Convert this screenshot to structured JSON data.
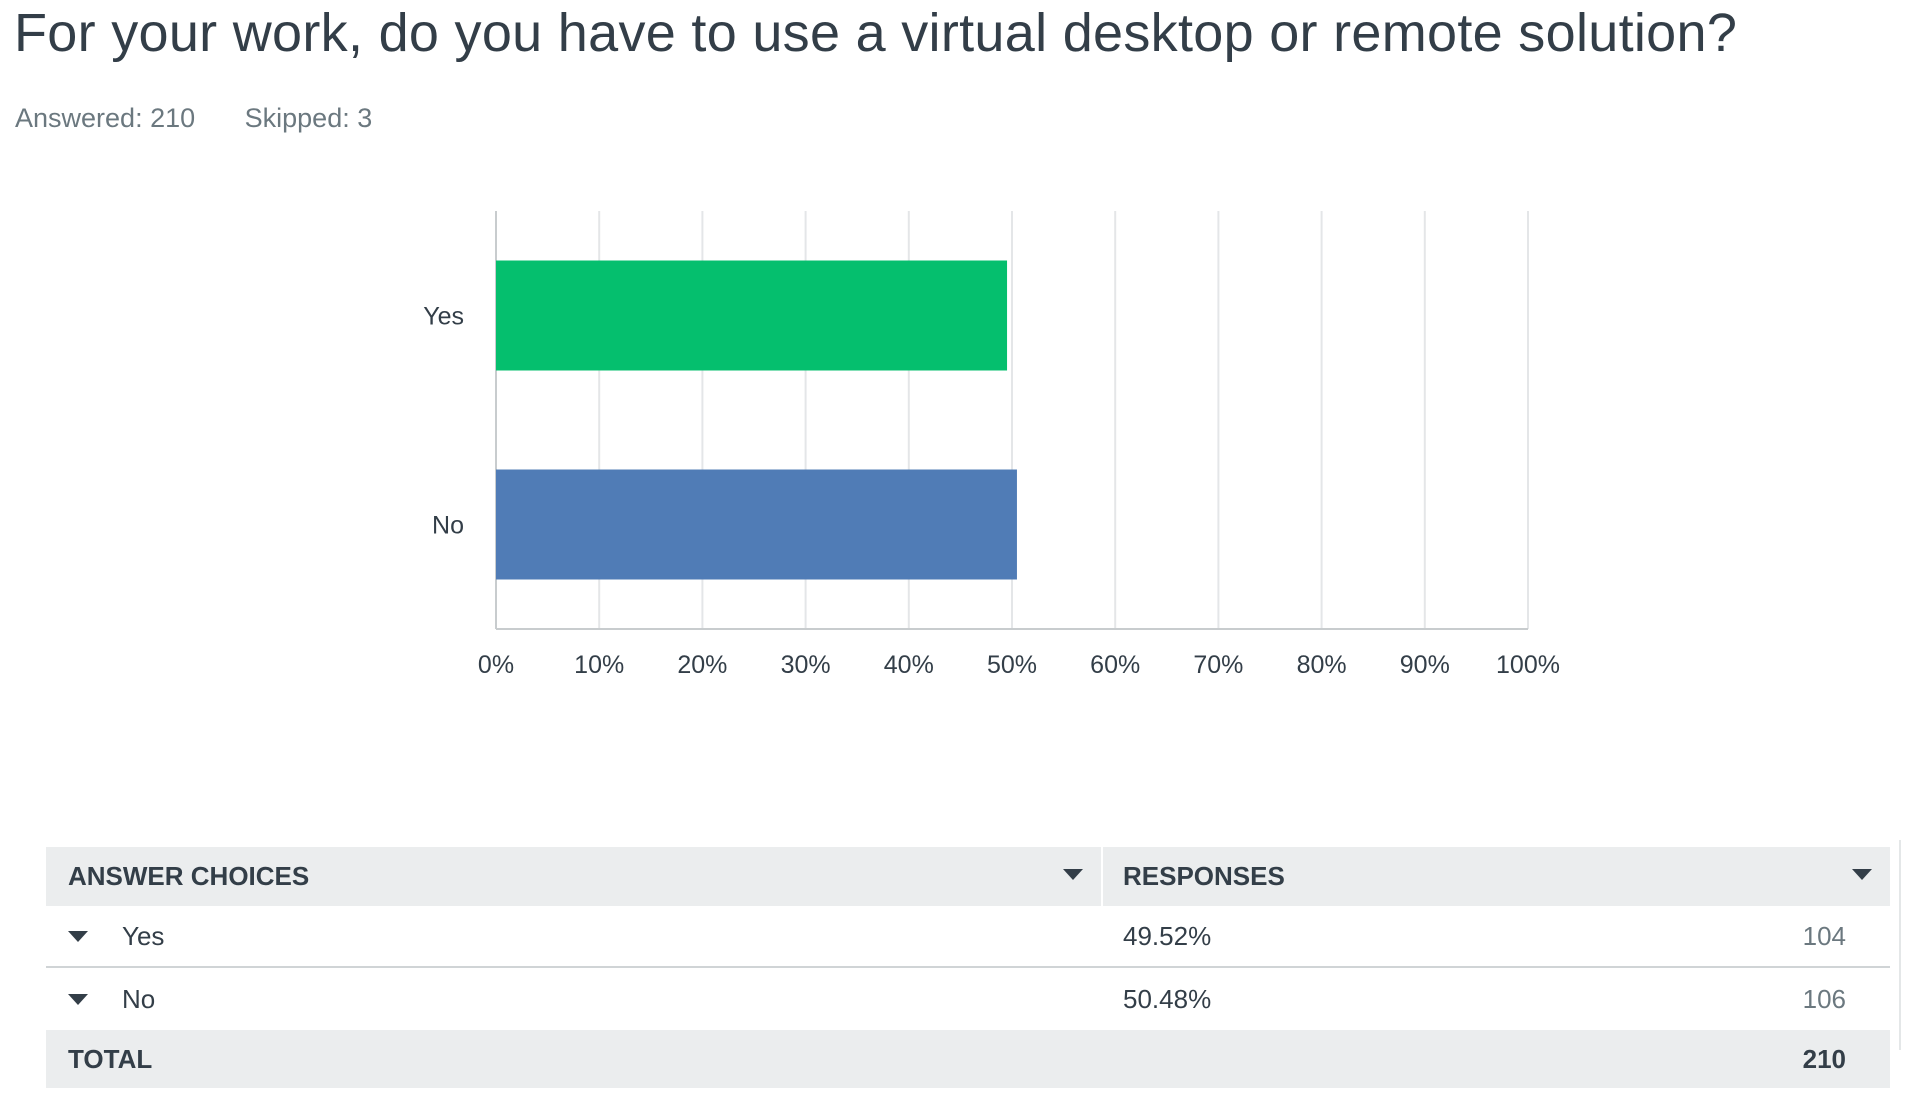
{
  "question": {
    "title": "For your work, do you have to use a virtual desktop or remote solution?",
    "answered_label": "Answered: 210",
    "skipped_label": "Skipped: 3"
  },
  "chart_data": {
    "type": "bar",
    "orientation": "horizontal",
    "categories": [
      "Yes",
      "No"
    ],
    "values": [
      49.52,
      50.48
    ],
    "colors": [
      "#05bf6e",
      "#507cb6"
    ],
    "xlim": [
      0,
      100
    ],
    "xticks": [
      "0%",
      "10%",
      "20%",
      "30%",
      "40%",
      "50%",
      "60%",
      "70%",
      "80%",
      "90%",
      "100%"
    ],
    "grid": true,
    "title": "",
    "xlabel": "",
    "ylabel": ""
  },
  "table": {
    "header_choices": "ANSWER CHOICES",
    "header_responses": "RESPONSES",
    "rows": [
      {
        "choice": "Yes",
        "percent": "49.52%",
        "count": "104"
      },
      {
        "choice": "No",
        "percent": "50.48%",
        "count": "106"
      }
    ],
    "total_label": "TOTAL",
    "total_count": "210"
  }
}
